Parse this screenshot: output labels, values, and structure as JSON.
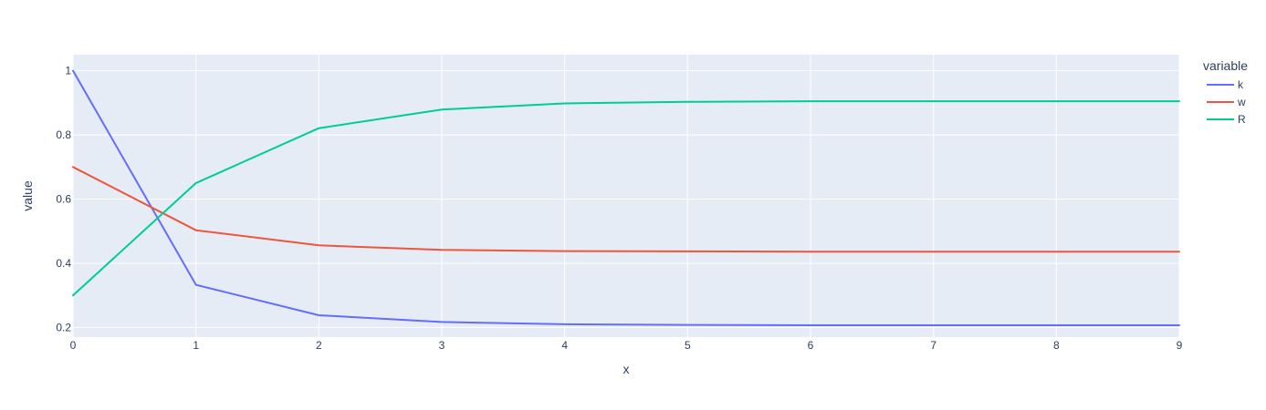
{
  "chart_data": {
    "type": "line",
    "xlabel": "x",
    "ylabel": "value",
    "x": [
      0,
      1,
      2,
      3,
      4,
      5,
      6,
      7,
      8,
      9
    ],
    "xlim": [
      0,
      9
    ],
    "ylim": [
      0.17,
      1.05
    ],
    "x_ticks": [
      0,
      1,
      2,
      3,
      4,
      5,
      6,
      7,
      8,
      9
    ],
    "x_tick_labels": [
      "0",
      "1",
      "2",
      "3",
      "4",
      "5",
      "6",
      "7",
      "8",
      "9"
    ],
    "y_ticks": [
      0.2,
      0.4,
      0.6,
      0.8,
      1
    ],
    "y_tick_labels": [
      "0.2",
      "0.4",
      "0.6",
      "0.8",
      "1"
    ],
    "grid": true,
    "legend_title": "variable",
    "legend_position": "top-right",
    "plot_background": "#e5ecf6",
    "series": [
      {
        "name": "k",
        "color": "#636efa",
        "values": [
          1.0,
          0.333,
          0.238,
          0.217,
          0.21,
          0.208,
          0.207,
          0.207,
          0.207,
          0.207
        ]
      },
      {
        "name": "w",
        "color": "#ef553b",
        "values": [
          0.7,
          0.503,
          0.456,
          0.442,
          0.438,
          0.437,
          0.436,
          0.436,
          0.436,
          0.436
        ]
      },
      {
        "name": "R",
        "color": "#00cc96",
        "values": [
          0.3,
          0.65,
          0.821,
          0.879,
          0.898,
          0.903,
          0.905,
          0.905,
          0.905,
          0.905
        ]
      }
    ]
  }
}
